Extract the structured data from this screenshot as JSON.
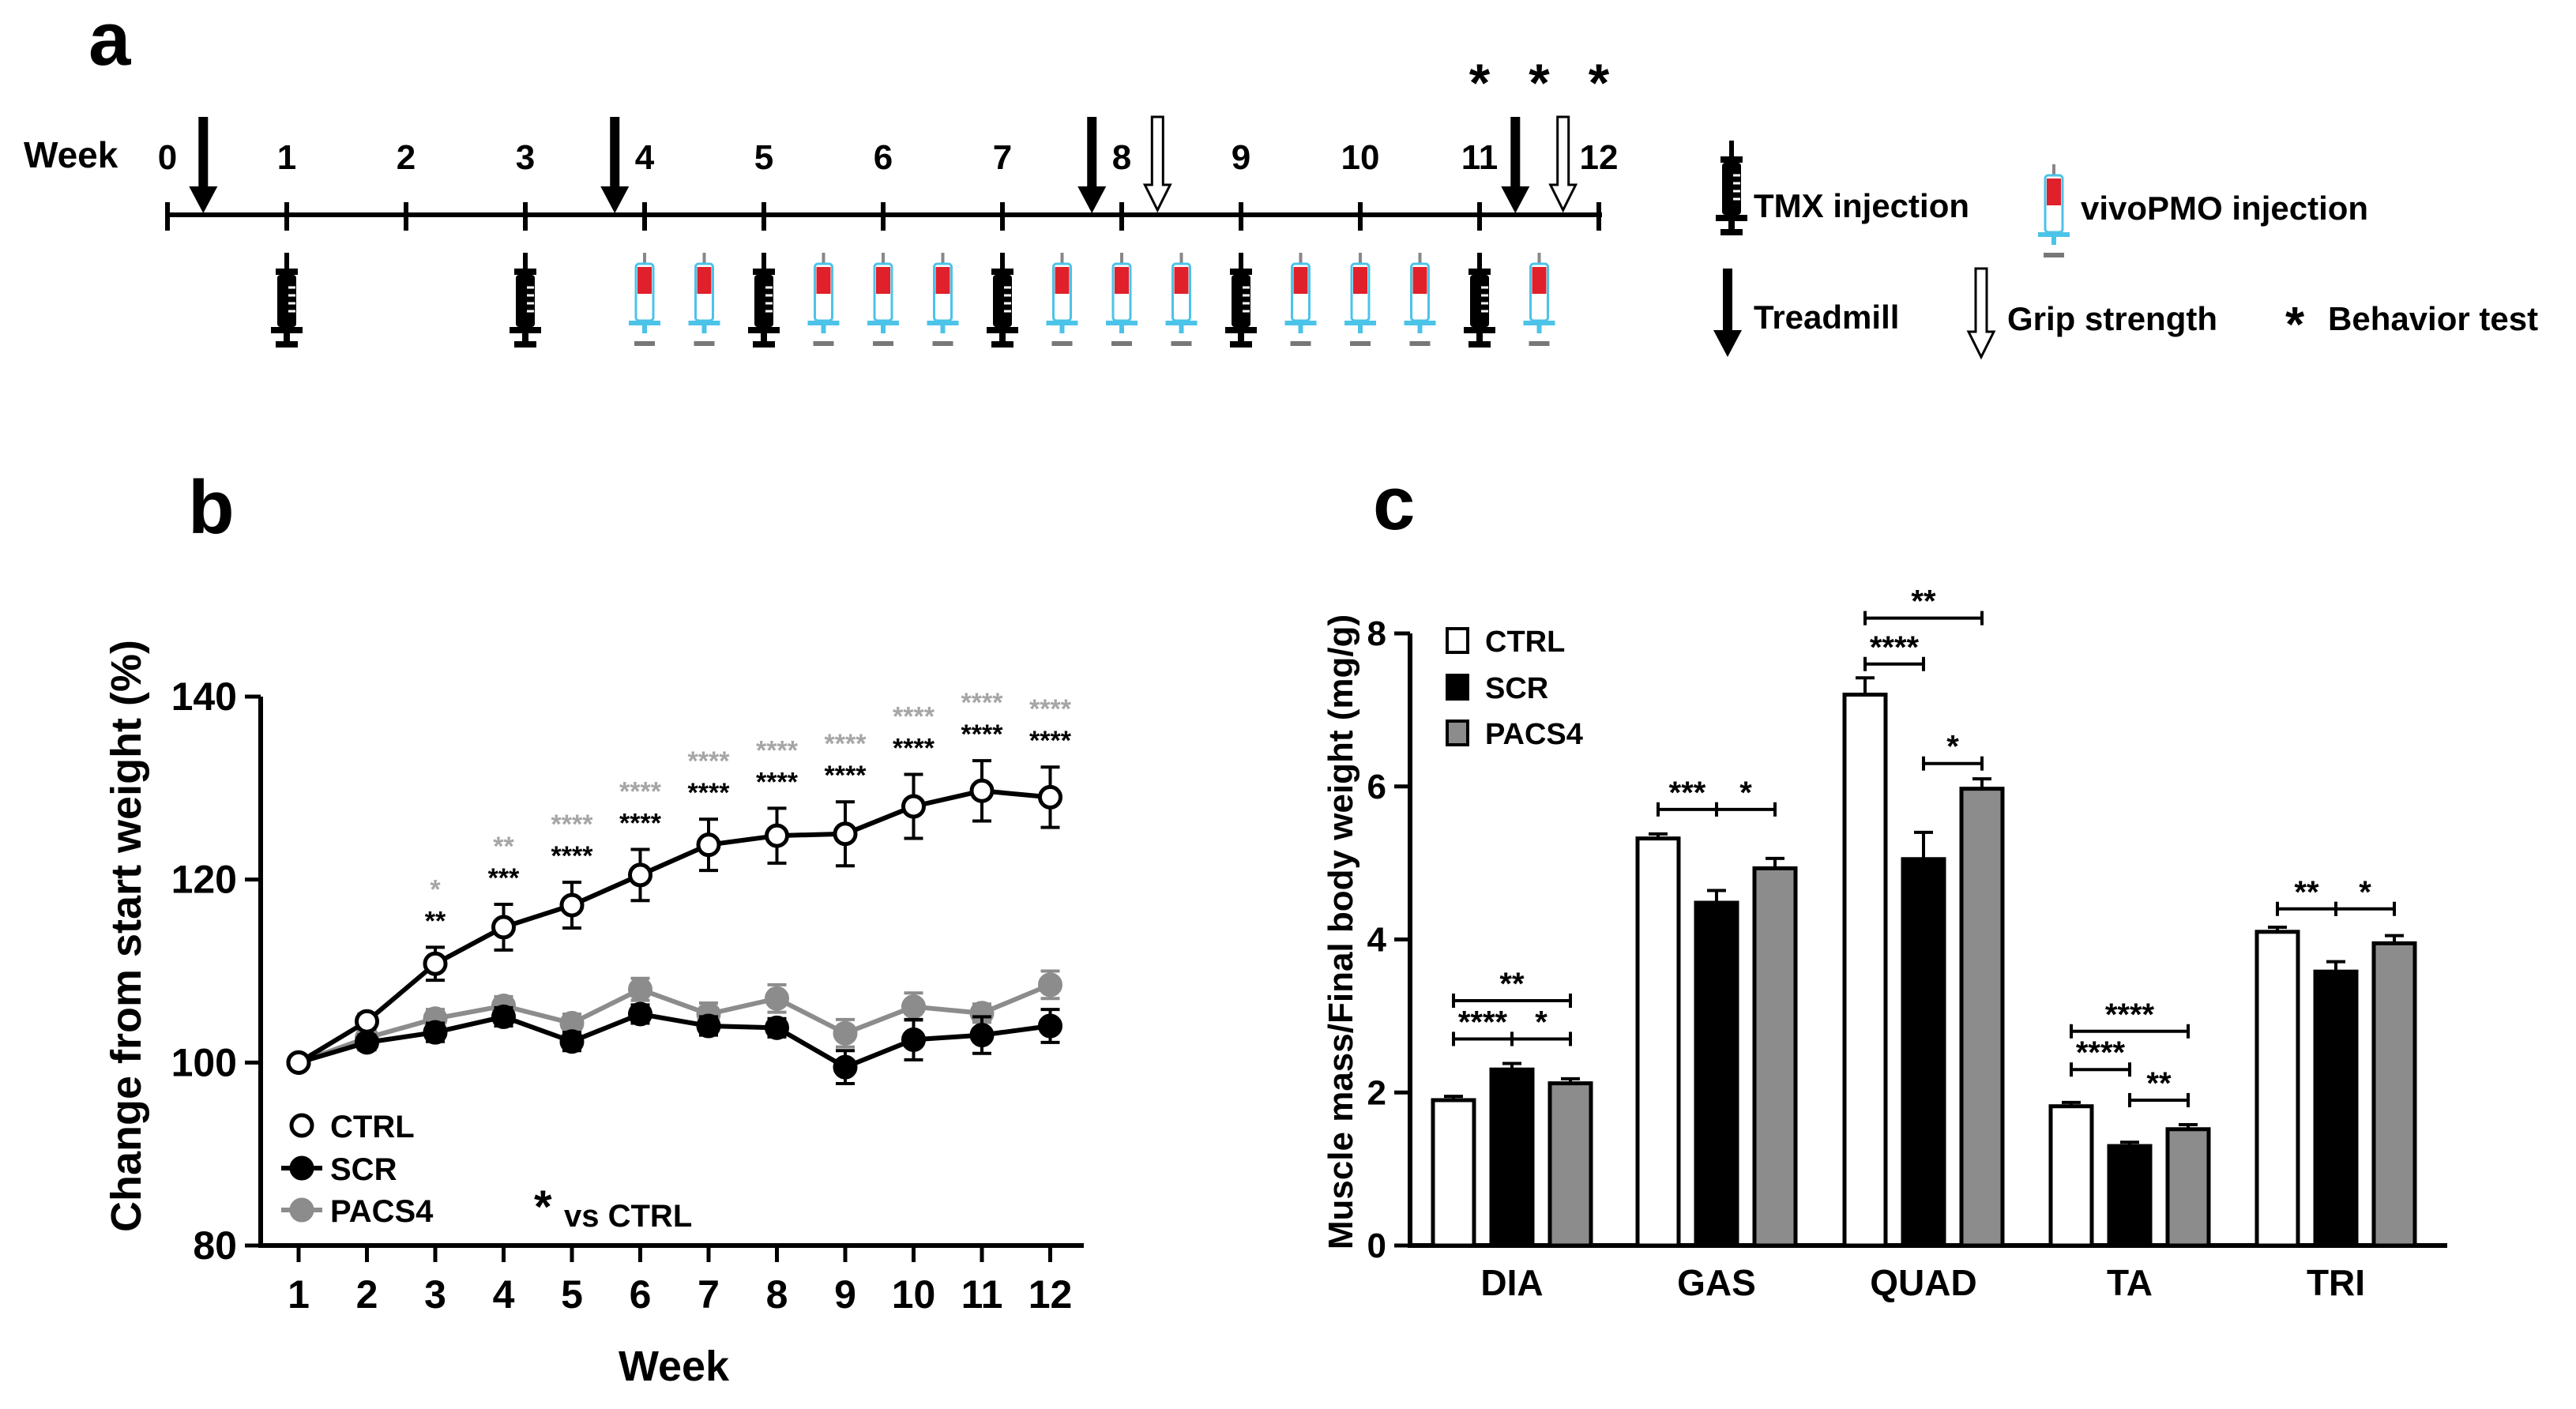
{
  "panel_labels": [
    "a",
    "b",
    "c"
  ],
  "colors": {
    "ctrl": "#ffffff",
    "scr": "#000000",
    "pacs4": "#8c8c8c",
    "pacs4_star": "#a6a6a6",
    "syringe_red": "#e0202a",
    "syringe_blue": "#4cc3e8"
  },
  "timeline": {
    "label": "Week",
    "ticks": [
      "0",
      "1",
      "2",
      "3",
      "4",
      "5",
      "6",
      "7",
      "8",
      "9",
      "10",
      "11",
      "12"
    ],
    "treadmill_weeks": [
      0.3,
      3.75,
      7.75,
      11.3
    ],
    "grip_weeks": [
      8.3,
      11.7
    ],
    "behavior_star_weeks": [
      11,
      11.5,
      12
    ],
    "behavior_star": "*",
    "tmx_weeks": [
      1,
      3,
      5,
      7,
      9,
      11
    ],
    "pmo_weeks": [
      4,
      4.5,
      5.5,
      6,
      6.5,
      7.5,
      8,
      8.5,
      9.5,
      10,
      10.5,
      11.5
    ],
    "legend": {
      "tmx": "TMX injection",
      "pmo": "vivoPMO injection",
      "treadmill": "Treadmill",
      "grip": "Grip strength",
      "behavior": "Behavior test",
      "behavior_symbol": "*"
    }
  },
  "chart_data": [
    {
      "id": "b",
      "type": "line",
      "xlabel": "Week",
      "ylabel": "Change from start weight (%)",
      "x": [
        1,
        2,
        3,
        4,
        5,
        6,
        7,
        8,
        9,
        10,
        11,
        12
      ],
      "ylim": [
        80,
        140
      ],
      "yticks": [
        80,
        100,
        120,
        140
      ],
      "series": [
        {
          "name": "CTRL",
          "values": [
            100,
            104.5,
            110.8,
            114.8,
            117.2,
            120.5,
            123.8,
            124.8,
            125,
            128,
            129.7,
            129
          ],
          "err": [
            0,
            0.8,
            1.8,
            2.5,
            2.5,
            2.8,
            2.8,
            3,
            3.5,
            3.5,
            3.3,
            3.3
          ]
        },
        {
          "name": "SCR",
          "values": [
            100,
            102.2,
            103.3,
            105,
            102.3,
            105.3,
            104,
            103.8,
            99.5,
            102.5,
            103,
            104
          ],
          "err": [
            0,
            0.8,
            1,
            1,
            1,
            1,
            1,
            1,
            1.8,
            2.2,
            2,
            1.8
          ]
        },
        {
          "name": "PACS4",
          "values": [
            100,
            102.7,
            104.8,
            106.2,
            104.3,
            108,
            105.3,
            107,
            103.2,
            106.1,
            105.4,
            108.5
          ],
          "err": [
            0,
            0.6,
            1,
            1,
            1,
            1.2,
            1.2,
            1.5,
            1.5,
            1.5,
            1,
            1.5
          ]
        }
      ],
      "stars_vs_pacs4": [
        "",
        "",
        "*",
        "**",
        "****",
        "****",
        "****",
        "****",
        "****",
        "****",
        "****",
        "****"
      ],
      "stars_vs_scr": [
        "",
        "",
        "**",
        "***",
        "****",
        "****",
        "****",
        "****",
        "****",
        "****",
        "****",
        "****"
      ],
      "annotation_star": "*",
      "annotation_text": "vs CTRL",
      "legend": [
        "CTRL",
        "SCR",
        "PACS4"
      ]
    },
    {
      "id": "c",
      "type": "bar",
      "ylabel": "Muscle mass/Final body weight (mg/g)",
      "categories": [
        "DIA",
        "GAS",
        "QUAD",
        "TA",
        "TRI"
      ],
      "ylim": [
        0,
        8
      ],
      "yticks": [
        0,
        2,
        4,
        6,
        8
      ],
      "series": [
        {
          "name": "CTRL",
          "values": [
            1.9,
            5.32,
            7.2,
            1.82,
            4.1
          ],
          "err": [
            0.05,
            0.06,
            0.22,
            0.05,
            0.06
          ]
        },
        {
          "name": "SCR",
          "values": [
            2.3,
            4.48,
            5.05,
            1.3,
            3.58
          ],
          "err": [
            0.08,
            0.16,
            0.35,
            0.05,
            0.13
          ]
        },
        {
          "name": "PACS4",
          "values": [
            2.12,
            4.93,
            5.97,
            1.52,
            3.95
          ],
          "err": [
            0.06,
            0.13,
            0.13,
            0.06,
            0.1
          ]
        }
      ],
      "brackets": [
        {
          "cat": 0,
          "from": 0,
          "to": 2,
          "y": 3.2,
          "label": "**"
        },
        {
          "cat": 0,
          "from": 0,
          "to": 1,
          "y": 2.7,
          "label": "****"
        },
        {
          "cat": 0,
          "from": 1,
          "to": 2,
          "y": 2.7,
          "label": "*"
        },
        {
          "cat": 1,
          "from": 0,
          "to": 1,
          "y": 5.7,
          "label": "***"
        },
        {
          "cat": 1,
          "from": 1,
          "to": 2,
          "y": 5.7,
          "label": "*"
        },
        {
          "cat": 2,
          "from": 0,
          "to": 2,
          "y": 8.2,
          "label": "**"
        },
        {
          "cat": 2,
          "from": 0,
          "to": 1,
          "y": 7.6,
          "label": "****"
        },
        {
          "cat": 2,
          "from": 1,
          "to": 2,
          "y": 6.3,
          "label": "*"
        },
        {
          "cat": 3,
          "from": 0,
          "to": 2,
          "y": 2.8,
          "label": "****"
        },
        {
          "cat": 3,
          "from": 0,
          "to": 1,
          "y": 2.3,
          "label": "****"
        },
        {
          "cat": 3,
          "from": 1,
          "to": 2,
          "y": 1.9,
          "label": "**"
        },
        {
          "cat": 4,
          "from": 0,
          "to": 1,
          "y": 4.4,
          "label": "**"
        },
        {
          "cat": 4,
          "from": 1,
          "to": 2,
          "y": 4.4,
          "label": "*"
        }
      ],
      "legend": [
        "CTRL",
        "SCR",
        "PACS4"
      ]
    }
  ]
}
